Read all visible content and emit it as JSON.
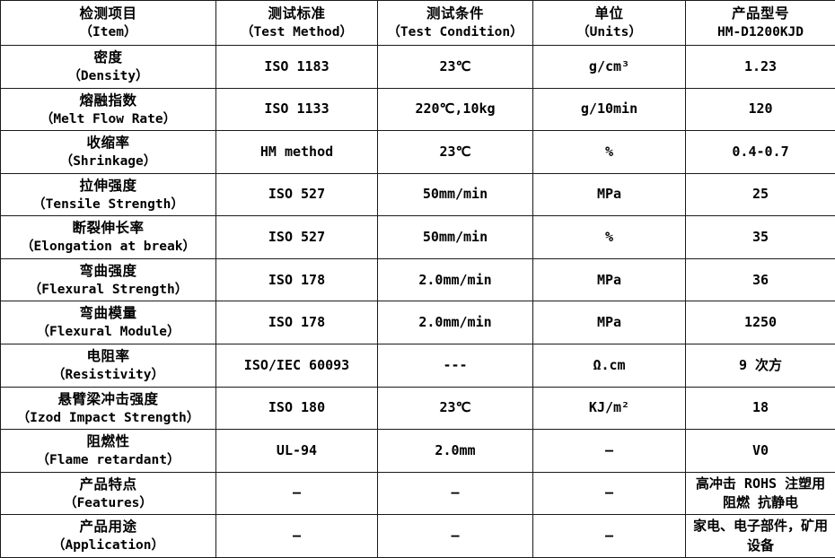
{
  "table": {
    "product_model": "HM-D1200KJD",
    "headers": {
      "item_cn": "检测项目",
      "item_en": "（Item）",
      "method_cn": "测试标准",
      "method_en": "（Test Method）",
      "condition_cn": "测试条件",
      "condition_en": "（Test Condition）",
      "units_cn": "单位",
      "units_en": "（Units）",
      "model_cn": "产品型号",
      "model_en": "HM-D1200KJD"
    },
    "rows": [
      {
        "item_cn": "密度",
        "item_en": "（Density）",
        "method": "ISO 1183",
        "condition": "23℃",
        "units": "g/cm³",
        "value": "1.23"
      },
      {
        "item_cn": "熔融指数",
        "item_en": "（Melt Flow Rate）",
        "method": "ISO 1133",
        "condition": "220℃,10kg",
        "units": "g/10min",
        "value": "120"
      },
      {
        "item_cn": "收缩率",
        "item_en": "（Shrinkage）",
        "method": "HM method",
        "condition": "23℃",
        "units": "%",
        "value": "0.4-0.7"
      },
      {
        "item_cn": "拉伸强度",
        "item_en": "（Tensile Strength）",
        "method": "ISO 527",
        "condition": "50mm/min",
        "units": "MPa",
        "value": "25"
      },
      {
        "item_cn": "断裂伸长率",
        "item_en": "（Elongation at break）",
        "method": "ISO 527",
        "condition": "50mm/min",
        "units": "%",
        "value": "35"
      },
      {
        "item_cn": "弯曲强度",
        "item_en": "（Flexural Strength）",
        "method": "ISO 178",
        "condition": "2.0mm/min",
        "units": "MPa",
        "value": "36"
      },
      {
        "item_cn": "弯曲模量",
        "item_en": "（Flexural Module）",
        "method": "ISO 178",
        "condition": "2.0mm/min",
        "units": "MPa",
        "value": "1250"
      },
      {
        "item_cn": "电阻率",
        "item_en": "（Resistivity）",
        "method": "ISO/IEC 60093",
        "condition": "---",
        "units": "Ω.cm",
        "value": "9 次方"
      },
      {
        "item_cn": "悬臂梁冲击强度",
        "item_en": "（Izod Impact Strength）",
        "method": "ISO 180",
        "condition": "23℃",
        "units": "KJ/m²",
        "value": "18"
      },
      {
        "item_cn": "阻燃性",
        "item_en": "（Flame retardant）",
        "method": "UL-94",
        "condition": "2.0mm",
        "units": "—",
        "value": "V0"
      },
      {
        "item_cn": "产品特点",
        "item_en": "（Features）",
        "method": "—",
        "condition": "—",
        "units": "—",
        "value": "高冲击 ROHS 注塑用 阻燃 抗静电"
      },
      {
        "item_cn": "产品用途",
        "item_en": "（Application）",
        "method": "—",
        "condition": "—",
        "units": "—",
        "value": "家电、电子部件，矿用设备"
      }
    ],
    "colors": {
      "border": "#1a1a1a",
      "text": "#000000",
      "background": "#ffffff"
    }
  }
}
